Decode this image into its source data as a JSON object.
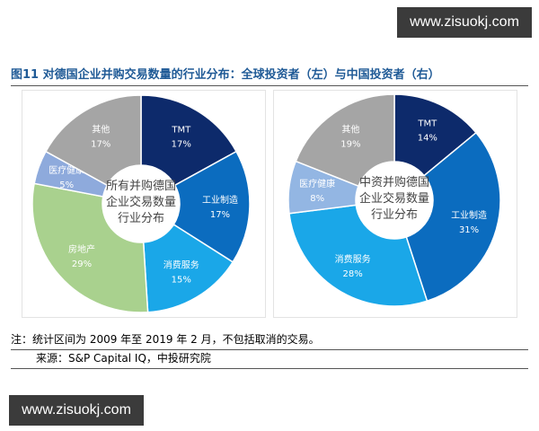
{
  "watermark": "www.zisuokj.com",
  "title": "图11 对德国企业并购交易数量的行业分布：全球投资者（左）与中国投资者（右）",
  "notes": {
    "note": "注：统计区间为 2009 年至 2019 年 2 月，不包括取消的交易。",
    "source": "来源：S&P Capital IQ，中投研究院"
  },
  "chart_data": [
    {
      "type": "pie",
      "donut": true,
      "center_label": "所有并购德国企业交易数量行业分布",
      "categories": [
        "TMT",
        "工业制造",
        "消费服务",
        "房地产",
        "医疗健康",
        "其他"
      ],
      "values": [
        17,
        17,
        15,
        29,
        5,
        17
      ],
      "unit": "%",
      "colors": [
        "#0d2a6b",
        "#0b6cbf",
        "#1aa7e8",
        "#a9d18e",
        "#8eaadc",
        "#a5a5a5"
      ],
      "label_colors": [
        "#ffffff",
        "#ffffff",
        "#ffffff",
        "#ffffff",
        "#ffffff",
        "#ffffff"
      ]
    },
    {
      "type": "pie",
      "donut": true,
      "center_label": "中资并购德国企业交易数量行业分布",
      "categories": [
        "TMT",
        "工业制造",
        "消费服务",
        "医疗健康",
        "其他"
      ],
      "values": [
        14,
        31,
        28,
        8,
        19
      ],
      "unit": "%",
      "colors": [
        "#0d2a6b",
        "#0b6cbf",
        "#1aa7e8",
        "#93b6e3",
        "#a5a5a5"
      ],
      "label_colors": [
        "#ffffff",
        "#ffffff",
        "#ffffff",
        "#ffffff",
        "#ffffff"
      ]
    }
  ]
}
